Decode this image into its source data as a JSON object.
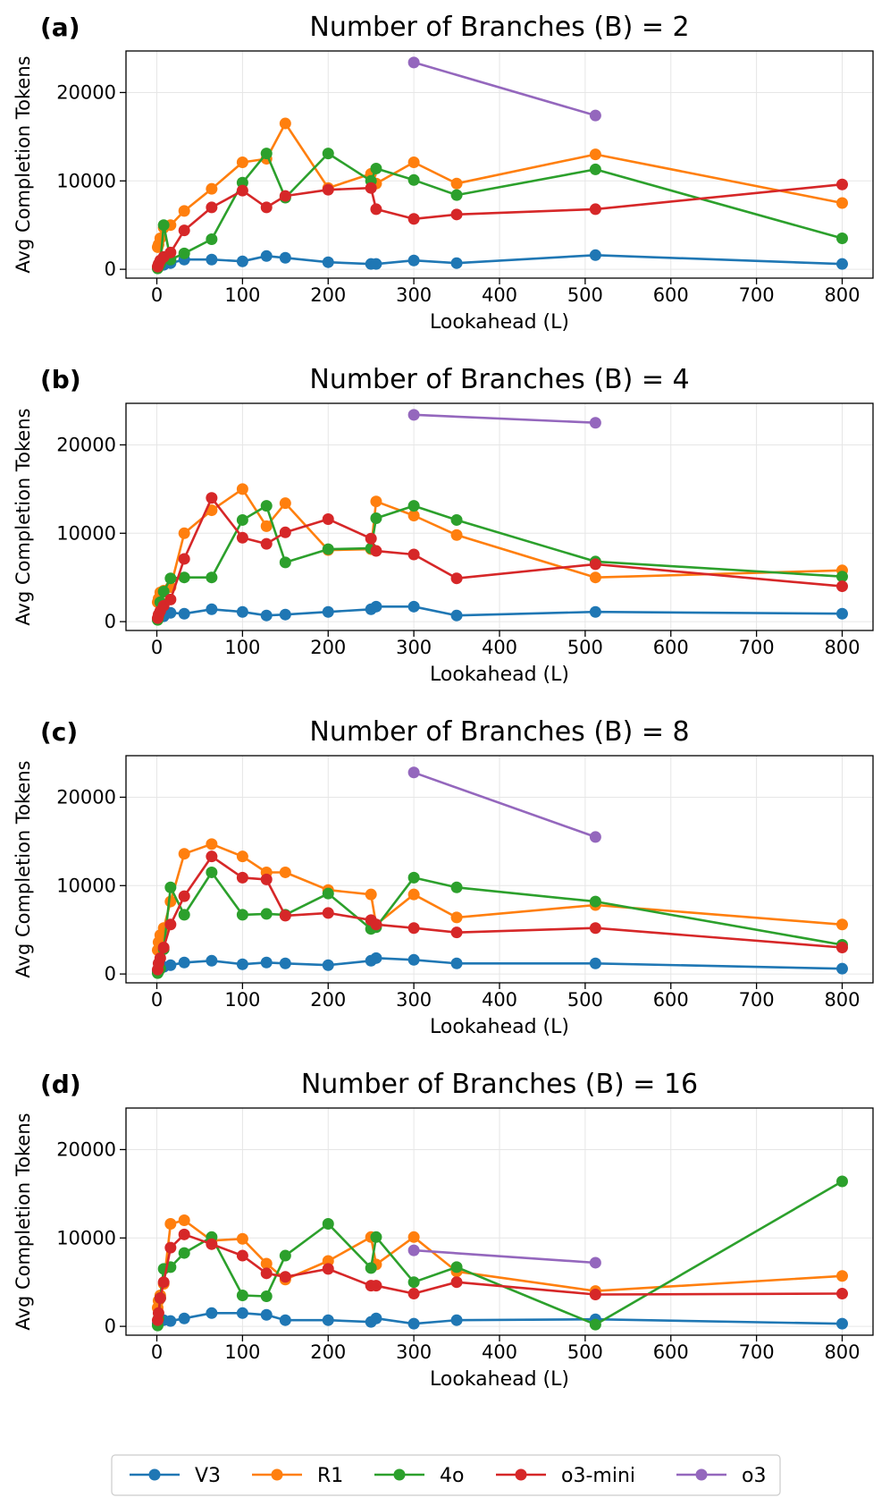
{
  "legend": [
    {
      "name": "V3",
      "color": "#1f77b4"
    },
    {
      "name": "R1",
      "color": "#ff7f0e"
    },
    {
      "name": "4o",
      "color": "#2ca02c"
    },
    {
      "name": "o3-mini",
      "color": "#d62728"
    },
    {
      "name": "o3",
      "color": "#9467bd"
    }
  ],
  "chart_data": [
    {
      "type": "line",
      "panel_label": "(a)",
      "title": "Number of Branches (B) = 2",
      "xlabel": "Lookahead (L)",
      "ylabel": "Avg Completion Tokens",
      "xlim": [
        -36,
        836
      ],
      "ylim": [
        -1000,
        24700
      ],
      "xticks": [
        0,
        100,
        200,
        300,
        400,
        500,
        600,
        700,
        800
      ],
      "yticks": [
        0,
        10000,
        20000
      ],
      "grid": true,
      "series": [
        {
          "name": "V3",
          "color": "#1f77b4",
          "x": [
            1,
            2,
            4,
            8,
            16,
            32,
            64,
            100,
            128,
            150,
            200,
            250,
            256,
            300,
            350,
            512,
            800
          ],
          "y": [
            200,
            400,
            800,
            500,
            700,
            1100,
            1100,
            900,
            1500,
            1300,
            800,
            600,
            600,
            1000,
            700,
            1600,
            600
          ]
        },
        {
          "name": "R1",
          "color": "#ff7f0e",
          "x": [
            1,
            2,
            4,
            8,
            16,
            32,
            64,
            100,
            128,
            150,
            200,
            250,
            256,
            300,
            350,
            512,
            800
          ],
          "y": [
            2500,
            2800,
            3500,
            4700,
            5000,
            6600,
            9100,
            12100,
            12500,
            16500,
            9200,
            10800,
            9700,
            12100,
            9700,
            13000,
            7500
          ]
        },
        {
          "name": "4o",
          "color": "#2ca02c",
          "x": [
            1,
            2,
            4,
            8,
            16,
            32,
            64,
            100,
            128,
            150,
            200,
            250,
            256,
            300,
            350,
            512,
            800
          ],
          "y": [
            100,
            300,
            600,
            5000,
            1100,
            1800,
            3400,
            9800,
            13100,
            8100,
            13100,
            10000,
            11400,
            10100,
            8400,
            11300,
            3500
          ]
        },
        {
          "name": "o3-mini",
          "color": "#d62728",
          "x": [
            1,
            2,
            4,
            8,
            16,
            32,
            64,
            100,
            128,
            150,
            200,
            250,
            256,
            300,
            350,
            512,
            800
          ],
          "y": [
            300,
            600,
            1000,
            1400,
            1900,
            4400,
            7000,
            8900,
            7000,
            8300,
            9000,
            9200,
            6800,
            5700,
            6200,
            6800,
            9600
          ]
        },
        {
          "name": "o3",
          "color": "#9467bd",
          "x": [
            300,
            512
          ],
          "y": [
            23400,
            17400
          ]
        }
      ]
    },
    {
      "type": "line",
      "panel_label": "(b)",
      "title": "Number of Branches (B) = 4",
      "xlabel": "Lookahead (L)",
      "ylabel": "Avg Completion Tokens",
      "xlim": [
        -36,
        836
      ],
      "ylim": [
        -1000,
        24700
      ],
      "xticks": [
        0,
        100,
        200,
        300,
        400,
        500,
        600,
        700,
        800
      ],
      "yticks": [
        0,
        10000,
        20000
      ],
      "grid": true,
      "series": [
        {
          "name": "V3",
          "color": "#1f77b4",
          "x": [
            1,
            2,
            4,
            8,
            16,
            32,
            64,
            100,
            128,
            150,
            200,
            250,
            256,
            300,
            350,
            512,
            800
          ],
          "y": [
            300,
            500,
            700,
            600,
            1000,
            900,
            1400,
            1100,
            700,
            800,
            1100,
            1400,
            1700,
            1700,
            700,
            1100,
            900
          ]
        },
        {
          "name": "R1",
          "color": "#ff7f0e",
          "x": [
            1,
            2,
            4,
            8,
            16,
            32,
            64,
            100,
            128,
            150,
            200,
            250,
            256,
            300,
            350,
            512,
            800
          ],
          "y": [
            2200,
            2600,
            3300,
            3500,
            3900,
            10000,
            12600,
            15000,
            10800,
            13400,
            8100,
            8200,
            13600,
            12000,
            9800,
            5000,
            5800
          ]
        },
        {
          "name": "4o",
          "color": "#2ca02c",
          "x": [
            1,
            2,
            4,
            8,
            16,
            32,
            64,
            100,
            128,
            150,
            200,
            250,
            256,
            300,
            350,
            512,
            800
          ],
          "y": [
            200,
            600,
            2200,
            3400,
            4900,
            5000,
            5000,
            11500,
            13100,
            6700,
            8200,
            8300,
            11700,
            13100,
            11500,
            6800,
            5100
          ]
        },
        {
          "name": "o3-mini",
          "color": "#d62728",
          "x": [
            1,
            2,
            4,
            8,
            16,
            32,
            64,
            100,
            128,
            150,
            200,
            250,
            256,
            300,
            350,
            512,
            800
          ],
          "y": [
            400,
            800,
            1200,
            1800,
            2500,
            7100,
            14000,
            9500,
            8800,
            10100,
            11600,
            9400,
            8000,
            7600,
            4900,
            6500,
            4000
          ]
        },
        {
          "name": "o3",
          "color": "#9467bd",
          "x": [
            300,
            512
          ],
          "y": [
            23400,
            22500
          ]
        }
      ]
    },
    {
      "type": "line",
      "panel_label": "(c)",
      "title": "Number of Branches (B) = 8",
      "xlabel": "Lookahead (L)",
      "ylabel": "Avg Completion Tokens",
      "xlim": [
        -36,
        836
      ],
      "ylim": [
        -1000,
        24700
      ],
      "xticks": [
        0,
        100,
        200,
        300,
        400,
        500,
        600,
        700,
        800
      ],
      "yticks": [
        0,
        10000,
        20000
      ],
      "grid": true,
      "series": [
        {
          "name": "V3",
          "color": "#1f77b4",
          "x": [
            1,
            2,
            4,
            8,
            16,
            32,
            64,
            100,
            128,
            150,
            200,
            250,
            256,
            300,
            350,
            512,
            800
          ],
          "y": [
            300,
            500,
            700,
            800,
            1000,
            1300,
            1500,
            1100,
            1300,
            1200,
            1000,
            1500,
            1800,
            1600,
            1200,
            1200,
            600
          ]
        },
        {
          "name": "R1",
          "color": "#ff7f0e",
          "x": [
            1,
            2,
            4,
            8,
            16,
            32,
            64,
            100,
            128,
            150,
            200,
            250,
            256,
            300,
            350,
            512,
            800
          ],
          "y": [
            2700,
            3600,
            4400,
            5200,
            8200,
            13600,
            14700,
            13300,
            11500,
            11500,
            9500,
            9000,
            5600,
            9000,
            6400,
            7800,
            5600
          ]
        },
        {
          "name": "4o",
          "color": "#2ca02c",
          "x": [
            1,
            2,
            4,
            8,
            16,
            32,
            64,
            100,
            128,
            150,
            200,
            250,
            256,
            300,
            350,
            512,
            800
          ],
          "y": [
            100,
            300,
            600,
            2800,
            9800,
            6700,
            11500,
            6700,
            6800,
            6700,
            9100,
            5100,
            5300,
            10900,
            9800,
            8200,
            3300
          ]
        },
        {
          "name": "o3-mini",
          "color": "#d62728",
          "x": [
            1,
            2,
            4,
            8,
            16,
            32,
            64,
            100,
            128,
            150,
            200,
            250,
            256,
            300,
            350,
            512,
            800
          ],
          "y": [
            500,
            1200,
            1800,
            3000,
            5600,
            8800,
            13300,
            10900,
            10700,
            6600,
            6900,
            6100,
            5600,
            5200,
            4700,
            5200,
            3000
          ]
        },
        {
          "name": "o3",
          "color": "#9467bd",
          "x": [
            300,
            512
          ],
          "y": [
            22800,
            15500
          ]
        }
      ]
    },
    {
      "type": "line",
      "panel_label": "(d)",
      "title": "Number of Branches (B) = 16",
      "xlabel": "Lookahead (L)",
      "ylabel": "Avg Completion Tokens",
      "xlim": [
        -36,
        836
      ],
      "ylim": [
        -1000,
        24700
      ],
      "xticks": [
        0,
        100,
        200,
        300,
        400,
        500,
        600,
        700,
        800
      ],
      "yticks": [
        0,
        10000,
        20000
      ],
      "grid": true,
      "series": [
        {
          "name": "V3",
          "color": "#1f77b4",
          "x": [
            1,
            2,
            4,
            8,
            16,
            32,
            64,
            100,
            128,
            150,
            200,
            250,
            256,
            300,
            350,
            512,
            800
          ],
          "y": [
            300,
            600,
            800,
            700,
            600,
            900,
            1500,
            1500,
            1300,
            700,
            700,
            500,
            900,
            300,
            700,
            800,
            300
          ]
        },
        {
          "name": "R1",
          "color": "#ff7f0e",
          "x": [
            1,
            2,
            4,
            8,
            16,
            32,
            64,
            100,
            128,
            150,
            200,
            250,
            256,
            300,
            350,
            512,
            800
          ],
          "y": [
            2100,
            2900,
            3500,
            4800,
            11600,
            12000,
            9700,
            9900,
            7100,
            5300,
            7400,
            10100,
            7000,
            10100,
            6200,
            4000,
            5700
          ]
        },
        {
          "name": "4o",
          "color": "#2ca02c",
          "x": [
            1,
            2,
            4,
            8,
            16,
            32,
            64,
            100,
            128,
            150,
            200,
            250,
            256,
            300,
            350,
            512,
            800
          ],
          "y": [
            100,
            900,
            3200,
            6500,
            6700,
            8300,
            10100,
            3500,
            3400,
            8000,
            11600,
            6600,
            10100,
            5000,
            6700,
            200,
            16400
          ]
        },
        {
          "name": "o3-mini",
          "color": "#d62728",
          "x": [
            1,
            2,
            4,
            8,
            16,
            32,
            64,
            100,
            128,
            150,
            200,
            250,
            256,
            300,
            350,
            512,
            800
          ],
          "y": [
            700,
            1500,
            3200,
            5000,
            8900,
            10400,
            9300,
            8000,
            6000,
            5600,
            6500,
            4600,
            4600,
            3700,
            5000,
            3600,
            3700
          ]
        },
        {
          "name": "o3",
          "color": "#9467bd",
          "x": [
            300,
            512
          ],
          "y": [
            8600,
            7200
          ]
        }
      ]
    }
  ]
}
